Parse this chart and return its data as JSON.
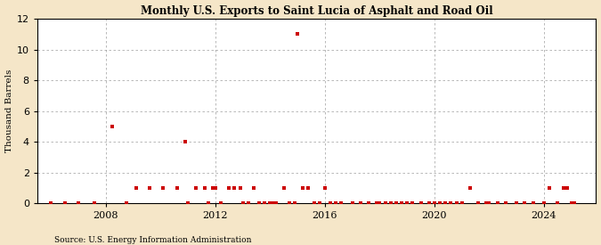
{
  "title": "Monthly U.S. Exports to Saint Lucia of Asphalt and Road Oil",
  "ylabel": "Thousand Barrels",
  "source": "Source: U.S. Energy Information Administration",
  "outer_bg": "#f5e6c8",
  "inner_bg": "#ffffff",
  "marker_color": "#cc0000",
  "ylim": [
    0,
    12
  ],
  "yticks": [
    0,
    2,
    4,
    6,
    8,
    10,
    12
  ],
  "xlim_start": 2005.5,
  "xlim_end": 2025.9,
  "xticks": [
    2008,
    2012,
    2016,
    2020,
    2024
  ],
  "data_points": [
    [
      2006.0,
      0
    ],
    [
      2006.5,
      0
    ],
    [
      2007.0,
      0
    ],
    [
      2007.6,
      0
    ],
    [
      2008.25,
      5
    ],
    [
      2008.75,
      0
    ],
    [
      2009.1,
      1
    ],
    [
      2009.6,
      1
    ],
    [
      2010.1,
      1
    ],
    [
      2010.6,
      1
    ],
    [
      2011.0,
      0
    ],
    [
      2011.3,
      1
    ],
    [
      2011.6,
      1
    ],
    [
      2011.75,
      0
    ],
    [
      2010.9,
      4
    ],
    [
      2012.0,
      1
    ],
    [
      2012.2,
      0
    ],
    [
      2012.5,
      1
    ],
    [
      2012.7,
      1
    ],
    [
      2012.9,
      1
    ],
    [
      2011.9,
      1
    ],
    [
      2013.0,
      0
    ],
    [
      2013.2,
      0
    ],
    [
      2013.4,
      1
    ],
    [
      2013.6,
      0
    ],
    [
      2013.8,
      0
    ],
    [
      2014.0,
      0
    ],
    [
      2014.2,
      0
    ],
    [
      2014.5,
      1
    ],
    [
      2014.7,
      0
    ],
    [
      2014.9,
      0
    ],
    [
      2014.1,
      0
    ],
    [
      2015.0,
      11
    ],
    [
      2015.2,
      1
    ],
    [
      2015.4,
      1
    ],
    [
      2015.6,
      0
    ],
    [
      2015.8,
      0
    ],
    [
      2016.0,
      1
    ],
    [
      2016.2,
      0
    ],
    [
      2016.4,
      0
    ],
    [
      2016.6,
      0
    ],
    [
      2017.0,
      0
    ],
    [
      2017.3,
      0
    ],
    [
      2017.6,
      0
    ],
    [
      2017.9,
      0
    ],
    [
      2018.0,
      0
    ],
    [
      2018.2,
      0
    ],
    [
      2018.4,
      0
    ],
    [
      2018.6,
      0
    ],
    [
      2018.8,
      0
    ],
    [
      2019.0,
      0
    ],
    [
      2019.2,
      0
    ],
    [
      2019.5,
      0
    ],
    [
      2019.8,
      0
    ],
    [
      2020.0,
      0
    ],
    [
      2020.2,
      0
    ],
    [
      2020.4,
      0
    ],
    [
      2020.6,
      0
    ],
    [
      2020.8,
      0
    ],
    [
      2021.3,
      1
    ],
    [
      2021.0,
      0
    ],
    [
      2021.6,
      0
    ],
    [
      2021.9,
      0
    ],
    [
      2022.0,
      0
    ],
    [
      2022.3,
      0
    ],
    [
      2022.6,
      0
    ],
    [
      2023.0,
      0
    ],
    [
      2023.3,
      0
    ],
    [
      2023.6,
      0
    ],
    [
      2024.0,
      0
    ],
    [
      2024.2,
      1
    ],
    [
      2024.5,
      0
    ],
    [
      2024.7,
      1
    ],
    [
      2024.85,
      1
    ],
    [
      2025.0,
      0
    ],
    [
      2025.1,
      0
    ]
  ]
}
